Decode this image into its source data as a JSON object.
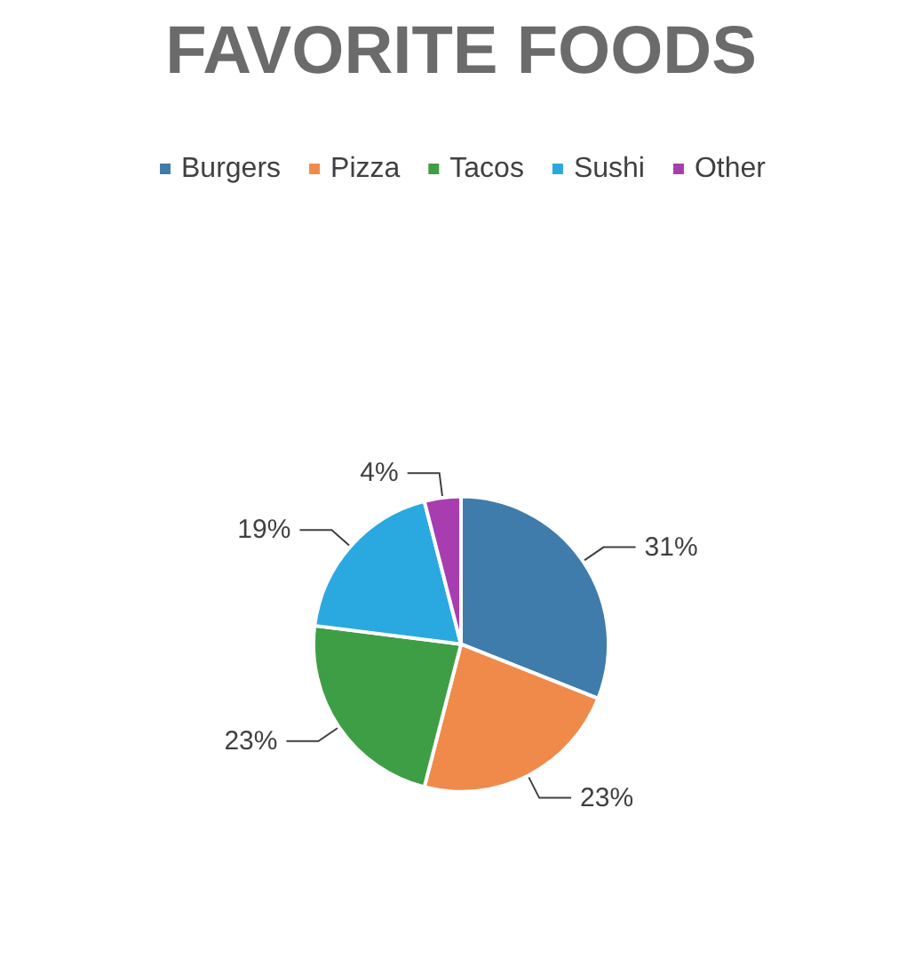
{
  "chart_data": {
    "type": "pie",
    "title": "FAVORITE FOODS",
    "categories": [
      "Burgers",
      "Pizza",
      "Tacos",
      "Sushi",
      "Other"
    ],
    "values": [
      31,
      23,
      23,
      19,
      4
    ],
    "value_labels": [
      "31%",
      "23%",
      "23%",
      "19%",
      "4%"
    ],
    "colors": [
      "#3f7cac",
      "#f08a4b",
      "#3e9e46",
      "#2aa9e0",
      "#a83db0"
    ],
    "legend": "top"
  }
}
